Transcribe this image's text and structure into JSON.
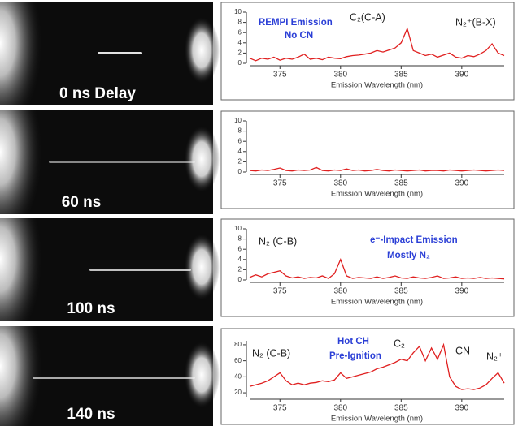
{
  "images": [
    {
      "label": "0 ns Delay"
    },
    {
      "label": "60 ns"
    },
    {
      "label": "100 ns"
    },
    {
      "label": "140 ns"
    }
  ],
  "chart_data": [
    {
      "type": "line",
      "color": "#e02020",
      "x_label": "Emission Wavelength (nm)",
      "xlim": [
        372.5,
        393.5
      ],
      "xticks": [
        375,
        380,
        385,
        390
      ],
      "ylim": [
        0,
        10
      ],
      "yticks": [
        0,
        2,
        4,
        6,
        8,
        10
      ],
      "annotations": [
        {
          "text": "REMPI Emission",
          "color": "#2b3fd6"
        },
        {
          "text": "No CN",
          "color": "#2b3fd6"
        },
        {
          "text": "C₂(C-A)",
          "color": "#222"
        },
        {
          "text": "N₂⁺(B-X)",
          "color": "#222"
        }
      ],
      "x": [
        372.5,
        373,
        373.5,
        374,
        374.5,
        375,
        375.5,
        376,
        376.5,
        377,
        377.5,
        378,
        378.5,
        379,
        379.5,
        380,
        380.5,
        381,
        381.5,
        382,
        382.5,
        383,
        383.5,
        384,
        384.5,
        385,
        385.5,
        386,
        386.5,
        387,
        387.5,
        388,
        388.5,
        389,
        389.5,
        390,
        390.5,
        391,
        391.5,
        392,
        392.5,
        393,
        393.5
      ],
      "values": [
        1,
        0.5,
        1,
        0.8,
        1.2,
        0.6,
        1,
        0.8,
        1.2,
        1.8,
        0.8,
        1,
        0.7,
        1.2,
        1,
        0.9,
        1.3,
        1.5,
        1.6,
        1.8,
        2,
        2.5,
        2.2,
        2.6,
        3,
        4,
        6.8,
        2.5,
        2,
        1.5,
        1.8,
        1.2,
        1.6,
        2,
        1.2,
        1,
        1.5,
        1.3,
        1.8,
        2.5,
        3.8,
        2,
        1.5
      ]
    },
    {
      "type": "line",
      "color": "#e02020",
      "x_label": "Emission Wavelength (nm)",
      "xlim": [
        372.5,
        393.5
      ],
      "xticks": [
        375,
        380,
        385,
        390
      ],
      "ylim": [
        0,
        10
      ],
      "yticks": [
        0,
        2,
        4,
        6,
        8,
        10
      ],
      "annotations": [],
      "x": [
        372.5,
        373,
        373.5,
        374,
        374.5,
        375,
        375.5,
        376,
        376.5,
        377,
        377.5,
        378,
        378.5,
        379,
        379.5,
        380,
        380.5,
        381,
        381.5,
        382,
        382.5,
        383,
        383.5,
        384,
        384.5,
        385,
        385.5,
        386,
        386.5,
        387,
        387.5,
        388,
        388.5,
        389,
        389.5,
        390,
        390.5,
        391,
        391.5,
        392,
        392.5,
        393,
        393.5
      ],
      "values": [
        0.3,
        0.2,
        0.4,
        0.3,
        0.5,
        0.8,
        0.3,
        0.2,
        0.4,
        0.3,
        0.4,
        0.9,
        0.3,
        0.2,
        0.4,
        0.3,
        0.6,
        0.3,
        0.4,
        0.2,
        0.3,
        0.5,
        0.3,
        0.2,
        0.4,
        0.3,
        0.2,
        0.3,
        0.4,
        0.2,
        0.3,
        0.3,
        0.2,
        0.4,
        0.3,
        0.2,
        0.3,
        0.4,
        0.3,
        0.2,
        0.3,
        0.4,
        0.3
      ]
    },
    {
      "type": "line",
      "color": "#e02020",
      "x_label": "Emission Wavelength (nm)",
      "xlim": [
        372.5,
        393.5
      ],
      "xticks": [
        375,
        380,
        385,
        390
      ],
      "ylim": [
        0,
        10
      ],
      "yticks": [
        0,
        2,
        4,
        6,
        8,
        10
      ],
      "annotations": [
        {
          "text": "N₂ (C-B)",
          "color": "#222"
        },
        {
          "text": "e⁻-Impact Emission",
          "color": "#2b3fd6"
        },
        {
          "text": "Mostly N₂",
          "color": "#2b3fd6"
        }
      ],
      "x": [
        372.5,
        373,
        373.5,
        374,
        374.5,
        375,
        375.5,
        376,
        376.5,
        377,
        377.5,
        378,
        378.5,
        379,
        379.5,
        380,
        380.5,
        381,
        381.5,
        382,
        382.5,
        383,
        383.5,
        384,
        384.5,
        385,
        385.5,
        386,
        386.5,
        387,
        387.5,
        388,
        388.5,
        389,
        389.5,
        390,
        390.5,
        391,
        391.5,
        392,
        392.5,
        393,
        393.5
      ],
      "values": [
        0.5,
        1,
        0.6,
        1.2,
        1.5,
        1.8,
        0.8,
        0.4,
        0.6,
        0.3,
        0.5,
        0.4,
        0.8,
        0.3,
        1.2,
        4,
        0.8,
        0.3,
        0.5,
        0.4,
        0.3,
        0.6,
        0.3,
        0.5,
        0.8,
        0.4,
        0.3,
        0.6,
        0.4,
        0.3,
        0.5,
        0.8,
        0.3,
        0.4,
        0.6,
        0.3,
        0.4,
        0.3,
        0.5,
        0.3,
        0.4,
        0.3,
        0.2
      ]
    },
    {
      "type": "line",
      "color": "#e02020",
      "x_label": "Emission Wavelength (nm)",
      "xlim": [
        372.5,
        393.5
      ],
      "xticks": [
        375,
        380,
        385,
        390
      ],
      "ylim": [
        15,
        85
      ],
      "yticks": [
        20,
        40,
        60,
        80
      ],
      "annotations": [
        {
          "text": "N₂ (C-B)",
          "color": "#222"
        },
        {
          "text": "Hot CH",
          "color": "#2b3fd6"
        },
        {
          "text": "Pre-Ignition",
          "color": "#2b3fd6"
        },
        {
          "text": "C₂",
          "color": "#222"
        },
        {
          "text": "CN",
          "color": "#222"
        },
        {
          "text": "N₂⁺",
          "color": "#222"
        }
      ],
      "x": [
        372.5,
        373,
        373.5,
        374,
        374.5,
        375,
        375.5,
        376,
        376.5,
        377,
        377.5,
        378,
        378.5,
        379,
        379.5,
        380,
        380.5,
        381,
        381.5,
        382,
        382.5,
        383,
        383.5,
        384,
        384.5,
        385,
        385.5,
        386,
        386.5,
        387,
        387.5,
        388,
        388.5,
        389,
        389.5,
        390,
        390.5,
        391,
        391.5,
        392,
        392.5,
        393,
        393.5
      ],
      "values": [
        28,
        30,
        32,
        35,
        40,
        45,
        35,
        30,
        32,
        30,
        32,
        33,
        35,
        34,
        36,
        45,
        38,
        40,
        42,
        44,
        46,
        50,
        52,
        55,
        58,
        62,
        60,
        70,
        78,
        60,
        76,
        62,
        80,
        40,
        28,
        24,
        25,
        24,
        26,
        30,
        38,
        45,
        32
      ]
    }
  ]
}
